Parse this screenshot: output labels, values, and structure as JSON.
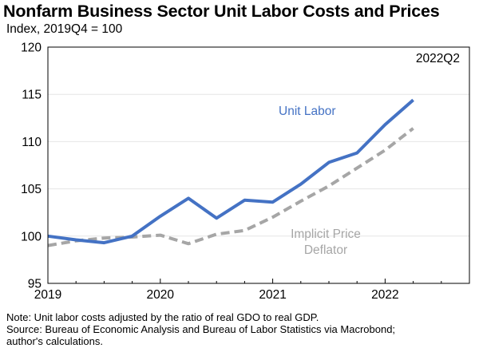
{
  "chart_data": {
    "type": "line",
    "title": "Nonfarm Business Sector Unit Labor Costs and Prices",
    "subtitle": "Index, 2019Q4 = 100",
    "ylim": [
      95,
      120
    ],
    "yticks": [
      95,
      100,
      105,
      110,
      115,
      120
    ],
    "xlim": [
      2019.0,
      2022.75
    ],
    "xticks": [
      2019,
      2020,
      2021,
      2022
    ],
    "xtick_labels": [
      "2019",
      "2020",
      "2021",
      "2022"
    ],
    "annotations": {
      "date_label": "2022Q2",
      "unit_labor_label": "Unit Labor",
      "price_label_line1": "Implicit Price",
      "price_label_line2": "Deflator"
    },
    "series": [
      {
        "name": "Unit Labor",
        "color": "#4472C4",
        "dashed": false,
        "x": [
          2019.0,
          2019.25,
          2019.5,
          2019.75,
          2020.0,
          2020.25,
          2020.5,
          2020.75,
          2021.0,
          2021.25,
          2021.5,
          2021.75,
          2022.0,
          2022.25
        ],
        "values": [
          100.0,
          99.6,
          99.3,
          100.0,
          102.1,
          104.0,
          101.9,
          103.8,
          103.6,
          105.5,
          107.8,
          108.8,
          111.8,
          114.4
        ]
      },
      {
        "name": "Implicit Price Deflator",
        "color": "#A6A6A6",
        "dashed": true,
        "x": [
          2019.0,
          2019.25,
          2019.5,
          2019.75,
          2020.0,
          2020.25,
          2020.5,
          2020.75,
          2021.0,
          2021.25,
          2021.5,
          2021.75,
          2022.0,
          2022.25
        ],
        "values": [
          99.0,
          99.5,
          99.8,
          99.9,
          100.1,
          99.2,
          100.2,
          100.6,
          102.0,
          103.7,
          105.3,
          107.2,
          109.1,
          111.4
        ]
      }
    ]
  },
  "notes": {
    "line1": "Note: Unit labor costs adjusted by the ratio of real GDO to real GDP.",
    "line2": "Source: Bureau of Economic Analysis and Bureau of Labor Statistics via Macrobond;",
    "line3": "author's calculations."
  }
}
